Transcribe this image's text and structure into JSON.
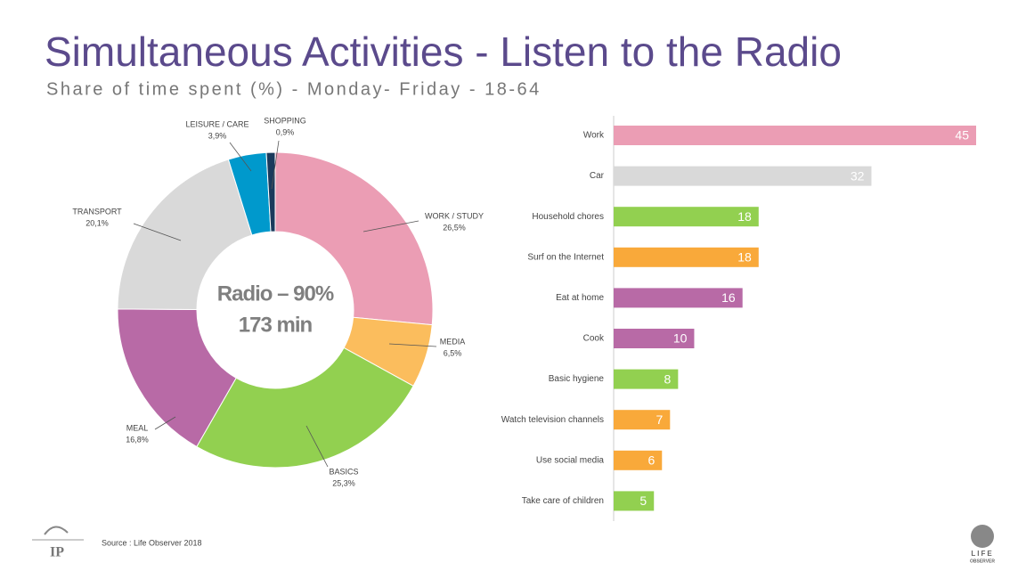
{
  "title": "Simultaneous Activities - Listen to the Radio",
  "subtitle": "Share of time spent (%) - Monday- Friday - 18-64",
  "source": "Source : Life Observer 2018",
  "logos": [
    "IP",
    "LIFE",
    "OBSERVER"
  ],
  "chart_data": [
    {
      "type": "donut",
      "annotations": [
        "Radio – 90%",
        "173 min"
      ],
      "categories": [
        "WORK / STUDY",
        "MEDIA",
        "BASICS",
        "MEAL",
        "TRANSPORT",
        "LEISURE / CARE",
        "SHOPPING"
      ],
      "values": [
        26.5,
        6.5,
        25.3,
        16.8,
        20.1,
        3.9,
        0.9
      ],
      "value_labels": [
        "26,5%",
        "6,5%",
        "25,3%",
        "16,8%",
        "20,1%",
        "3,9%",
        "0,9%"
      ],
      "colors": [
        "#eb9db4",
        "#fbbd5d",
        "#92d050",
        "#b86aa6",
        "#d9d9d9",
        "#0099cc",
        "#1a3a5c"
      ]
    },
    {
      "type": "hbar",
      "categories": [
        "Work",
        "Car",
        "Household chores",
        "Surf on the Internet",
        "Eat at home",
        "Cook",
        "Basic hygiene",
        "Watch television channels",
        "Use social media",
        "Take care of children"
      ],
      "values": [
        45,
        32,
        18,
        18,
        16,
        10,
        8,
        7,
        6,
        5
      ],
      "colors": [
        "#eb9db4",
        "#d9d9d9",
        "#92d050",
        "#f9a93a",
        "#b86aa6",
        "#b86aa6",
        "#92d050",
        "#f9a93a",
        "#f9a93a",
        "#92d050"
      ]
    }
  ]
}
